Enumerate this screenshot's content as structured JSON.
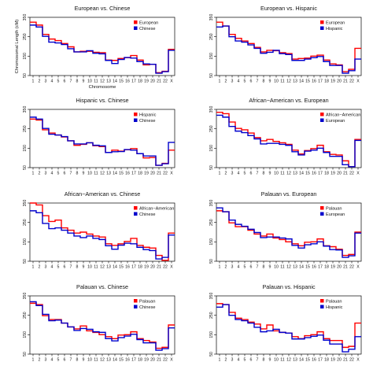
{
  "chart_data": [
    {
      "type": "line",
      "title": "European vs. Chinese",
      "xlabel": "Chromosome",
      "ylabel": "Chromosomal Length (cM)",
      "ylim": [
        50,
        350
      ],
      "yticks": [
        50,
        150,
        250,
        350
      ],
      "categories": [
        "1",
        "2",
        "3",
        "4",
        "5",
        "6",
        "7",
        "8",
        "9",
        "10",
        "11",
        "12",
        "13",
        "14",
        "15",
        "16",
        "17",
        "18",
        "19",
        "20",
        "21",
        "22",
        "X"
      ],
      "legend_position": "top-right",
      "series": [
        {
          "name": "European",
          "color": "#ff0000",
          "values": [
            325,
            310,
            262,
            238,
            230,
            215,
            198,
            172,
            175,
            175,
            170,
            168,
            130,
            128,
            138,
            142,
            153,
            130,
            105,
            108,
            65,
            72,
            185
          ]
        },
        {
          "name": "Chinese",
          "color": "#0000cc",
          "values": [
            310,
            300,
            252,
            222,
            218,
            210,
            188,
            172,
            172,
            178,
            165,
            162,
            128,
            112,
            133,
            143,
            140,
            122,
            110,
            108,
            62,
            70,
            180
          ]
        }
      ]
    },
    {
      "type": "line",
      "title": "European vs. Hispanic",
      "xlabel": "",
      "ylabel": "",
      "ylim": [
        50,
        350
      ],
      "yticks": [
        50,
        150,
        250,
        350
      ],
      "categories": [
        "1",
        "2",
        "3",
        "4",
        "5",
        "6",
        "7",
        "8",
        "9",
        "10",
        "11",
        "12",
        "13",
        "14",
        "15",
        "16",
        "17",
        "18",
        "19",
        "20",
        "21",
        "22",
        "X"
      ],
      "legend_position": "top-right",
      "series": [
        {
          "name": "European",
          "color": "#ff0000",
          "values": [
            325,
            305,
            262,
            242,
            228,
            215,
            195,
            172,
            180,
            178,
            168,
            163,
            135,
            138,
            140,
            150,
            155,
            130,
            110,
            105,
            70,
            82,
            190
          ]
        },
        {
          "name": "Hispanic",
          "color": "#0000cc",
          "values": [
            300,
            305,
            250,
            228,
            222,
            208,
            190,
            165,
            170,
            180,
            163,
            158,
            128,
            128,
            135,
            142,
            148,
            122,
            102,
            102,
            62,
            75,
            135
          ]
        }
      ]
    },
    {
      "type": "line",
      "title": "Hispanic vs. Chinese",
      "xlabel": "",
      "ylabel": "",
      "ylim": [
        50,
        350
      ],
      "yticks": [
        50,
        150,
        250,
        350
      ],
      "categories": [
        "1",
        "2",
        "3",
        "4",
        "5",
        "6",
        "7",
        "8",
        "9",
        "10",
        "11",
        "12",
        "13",
        "14",
        "15",
        "16",
        "17",
        "18",
        "19",
        "20",
        "21",
        "22",
        "X"
      ],
      "legend_position": "top-right",
      "series": [
        {
          "name": "Hispanic",
          "color": "#ff0000",
          "values": [
            300,
            295,
            245,
            228,
            218,
            208,
            188,
            165,
            170,
            178,
            163,
            158,
            128,
            140,
            135,
            142,
            148,
            122,
            100,
            102,
            62,
            72,
            140
          ]
        },
        {
          "name": "Chinese",
          "color": "#0000cc",
          "values": [
            310,
            300,
            252,
            222,
            218,
            210,
            188,
            172,
            172,
            178,
            165,
            162,
            128,
            132,
            133,
            143,
            140,
            122,
            110,
            110,
            62,
            70,
            180
          ]
        }
      ]
    },
    {
      "type": "line",
      "title": "African−American vs. European",
      "xlabel": "",
      "ylabel": "",
      "ylim": [
        50,
        350
      ],
      "yticks": [
        50,
        150,
        250,
        350
      ],
      "categories": [
        "1",
        "2",
        "3",
        "4",
        "5",
        "6",
        "7",
        "8",
        "9",
        "10",
        "11",
        "12",
        "13",
        "14",
        "15",
        "16",
        "17",
        "18",
        "19",
        "20",
        "21",
        "22",
        "X"
      ],
      "legend_position": "top-right",
      "series": [
        {
          "name": "African−American",
          "color": "#ff0000",
          "values": [
            335,
            328,
            285,
            252,
            245,
            228,
            205,
            188,
            195,
            185,
            178,
            170,
            140,
            120,
            138,
            148,
            165,
            132,
            118,
            115,
            85,
            55,
            195
          ]
        },
        {
          "name": "European",
          "color": "#0000cc",
          "values": [
            320,
            310,
            262,
            238,
            230,
            215,
            198,
            172,
            175,
            175,
            170,
            165,
            132,
            115,
            135,
            140,
            150,
            128,
            108,
            108,
            65,
            55,
            190
          ]
        }
      ]
    },
    {
      "type": "line",
      "title": "African−American vs. Chinese",
      "xlabel": "",
      "ylabel": "",
      "ylim": [
        50,
        350
      ],
      "yticks": [
        50,
        150,
        250,
        350
      ],
      "categories": [
        "1",
        "2",
        "3",
        "4",
        "5",
        "6",
        "7",
        "8",
        "9",
        "10",
        "11",
        "12",
        "13",
        "14",
        "15",
        "16",
        "17",
        "18",
        "19",
        "20",
        "21",
        "22",
        "X"
      ],
      "legend_position": "top-right",
      "series": [
        {
          "name": "African−American",
          "color": "#ff0000",
          "values": [
            350,
            340,
            285,
            255,
            262,
            222,
            210,
            195,
            200,
            190,
            180,
            175,
            140,
            132,
            140,
            152,
            168,
            132,
            122,
            118,
            80,
            55,
            195
          ]
        },
        {
          "name": "Chinese",
          "color": "#0000cc",
          "values": [
            310,
            300,
            245,
            218,
            222,
            210,
            195,
            180,
            172,
            180,
            168,
            162,
            130,
            112,
            133,
            143,
            140,
            122,
            110,
            105,
            62,
            70,
            185
          ]
        }
      ]
    },
    {
      "type": "line",
      "title": "Palauan vs. European",
      "xlabel": "",
      "ylabel": "",
      "ylim": [
        50,
        350
      ],
      "yticks": [
        50,
        150,
        250,
        350
      ],
      "categories": [
        "1",
        "2",
        "3",
        "4",
        "5",
        "6",
        "7",
        "8",
        "9",
        "10",
        "11",
        "12",
        "13",
        "14",
        "15",
        "16",
        "17",
        "18",
        "19",
        "20",
        "21",
        "22",
        "X"
      ],
      "legend_position": "top-right",
      "series": [
        {
          "name": "Palauan",
          "color": "#ff0000",
          "values": [
            310,
            305,
            248,
            228,
            228,
            210,
            190,
            180,
            190,
            170,
            162,
            150,
            140,
            130,
            148,
            150,
            165,
            130,
            125,
            112,
            80,
            85,
            200
          ]
        },
        {
          "name": "European",
          "color": "#0000cc",
          "values": [
            325,
            305,
            262,
            240,
            230,
            215,
            198,
            172,
            175,
            175,
            170,
            165,
            132,
            118,
            135,
            140,
            150,
            128,
            110,
            108,
            70,
            78,
            195
          ]
        }
      ]
    },
    {
      "type": "line",
      "title": "Palauan vs. Chinese",
      "xlabel": "",
      "ylabel": "",
      "ylim": [
        50,
        350
      ],
      "yticks": [
        50,
        150,
        250,
        350
      ],
      "categories": [
        "1",
        "2",
        "3",
        "4",
        "5",
        "6",
        "7",
        "8",
        "9",
        "10",
        "11",
        "12",
        "13",
        "14",
        "15",
        "16",
        "17",
        "18",
        "19",
        "20",
        "21",
        "22",
        "X"
      ],
      "legend_position": "top-right",
      "series": [
        {
          "name": "Palauan",
          "color": "#ff0000",
          "values": [
            312,
            305,
            248,
            228,
            228,
            210,
            190,
            180,
            195,
            170,
            162,
            150,
            140,
            130,
            148,
            150,
            165,
            130,
            120,
            112,
            80,
            85,
            200
          ]
        },
        {
          "name": "Chinese",
          "color": "#0000cc",
          "values": [
            320,
            300,
            255,
            222,
            225,
            210,
            190,
            172,
            182,
            178,
            165,
            162,
            130,
            118,
            135,
            143,
            152,
            125,
            108,
            108,
            70,
            78,
            185
          ]
        }
      ]
    },
    {
      "type": "line",
      "title": "Palauan vs. Hispanic",
      "xlabel": "",
      "ylabel": "",
      "ylim": [
        50,
        350
      ],
      "yticks": [
        50,
        150,
        250,
        350
      ],
      "categories": [
        "1",
        "2",
        "3",
        "4",
        "5",
        "6",
        "7",
        "8",
        "9",
        "10",
        "11",
        "12",
        "13",
        "14",
        "15",
        "16",
        "17",
        "18",
        "19",
        "20",
        "21",
        "22",
        "X"
      ],
      "legend_position": "top-right",
      "series": [
        {
          "name": "Palauan",
          "color": "#ff0000",
          "values": [
            310,
            305,
            265,
            235,
            228,
            215,
            205,
            180,
            200,
            170,
            162,
            158,
            140,
            130,
            145,
            150,
            165,
            130,
            120,
            120,
            85,
            90,
            210
          ]
        },
        {
          "name": "Hispanic",
          "color": "#0000cc",
          "values": [
            292,
            305,
            250,
            228,
            222,
            210,
            188,
            165,
            170,
            178,
            162,
            158,
            128,
            128,
            135,
            142,
            148,
            122,
            102,
            102,
            62,
            75,
            140
          ]
        }
      ]
    }
  ]
}
